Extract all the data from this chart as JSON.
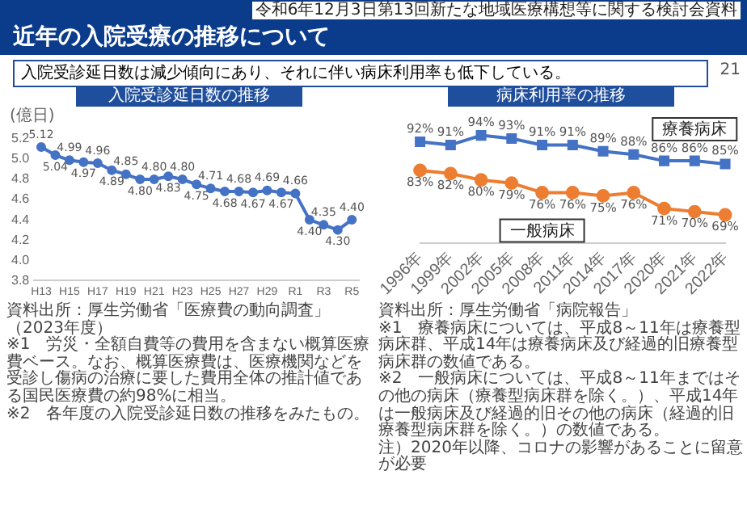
{
  "chart_data": [
    {
      "type": "line",
      "title": "入院受診延日数の推移",
      "ylabel": "(億日)",
      "categories": [
        "H13",
        null,
        "H15",
        null,
        "H17",
        null,
        "H19",
        null,
        "H21",
        null,
        "H23",
        null,
        "H25",
        null,
        "H27",
        null,
        "H29",
        null,
        "R1",
        null,
        "R3",
        null,
        "R5"
      ],
      "values": [
        5.12,
        5.04,
        4.99,
        4.97,
        4.96,
        4.89,
        4.85,
        4.8,
        4.8,
        4.83,
        4.8,
        4.75,
        4.71,
        4.68,
        4.68,
        4.67,
        4.69,
        4.67,
        4.66,
        4.4,
        4.35,
        4.3,
        4.4
      ],
      "value_labels": [
        "5.12",
        "5.04",
        "4.99",
        "4.97",
        "4.96",
        "4.89",
        "4.85",
        "4.80",
        "4.80",
        "4.83",
        "4.80",
        "4.75",
        "4.71",
        "4.68",
        "4.68",
        "4.67",
        "4.69",
        "4.67",
        "4.66",
        "4.40",
        "4.35",
        "4.30",
        "4.40"
      ],
      "color": "#4472c4",
      "ylim": [
        3.8,
        5.2
      ],
      "yticks": [
        3.8,
        {
          "value": 4,
          "label": "4.0"
        },
        4.2,
        4.4,
        4.6,
        4.8,
        {
          "value": 5,
          "label": "5.0"
        },
        5.2
      ],
      "grid": false,
      "marker": "circle",
      "annotations": [
        "令和6年12月3日第13回新たな地域医療構想等に関する検討会資料",
        "近年の入院受療の推移について",
        "入院受診延日数は減少傾向にあり、それに伴い病床利用率も低下している。",
        "資料出所：厚生労働省「医療費の動向調査」（2023年度）",
        "※1　労災・全額自費等の費用を含まない概算医療費ベース。なお、概算医療費は、医療機関などを受診し傷病の治療に要した費用全体の推計値である国民医療費の約98%に相当。",
        "※2　各年度の入院受診延日数の推移をみたもの。"
      ]
    },
    {
      "type": "line",
      "title": "病床利用率の推移",
      "categories": [
        "1996年",
        "1999年",
        "2002年",
        "2005年",
        "2008年",
        "2011年",
        "2014年",
        "2017年",
        "2020年",
        "2021年",
        "2022年"
      ],
      "series": [
        {
          "name": "療養病床",
          "color": "#4472c4",
          "marker": "square",
          "values": [
            92,
            91,
            94,
            93,
            91,
            91,
            89,
            88,
            86,
            86,
            85
          ],
          "value_labels": [
            "92%",
            "91%",
            "94%",
            "93%",
            "91%",
            "91%",
            "89%",
            "88%",
            "86%",
            "86%",
            "85%"
          ]
        },
        {
          "name": "一般病床",
          "color": "#ed7d31",
          "marker": "circle",
          "values": [
            83,
            82,
            80,
            79,
            76,
            76,
            75,
            76,
            71,
            70,
            69
          ],
          "value_labels": [
            "83%",
            "82%",
            "80%",
            "79%",
            "76%",
            "76%",
            "75%",
            "76%",
            "71%",
            "70%",
            "69%"
          ]
        }
      ],
      "grid": false,
      "legend": false,
      "annotations": [
        "資料出所：厚生労働省「病院報告」",
        "※1　療養病床については、平成8～11年は療養型病床群、平成14年は療養病床及び経過的旧療養型病床群の数値である。",
        "※2　一般病床については、平成8～11年まではその他の病床（療養型病床群を除く。）、平成14年は一般病床及び経過的旧その他の病床（経過的旧療養型病床群を除く。）の数値である。",
        "注）2020年以降、コロナの影響があることに留意が必要",
        "21"
      ]
    }
  ]
}
